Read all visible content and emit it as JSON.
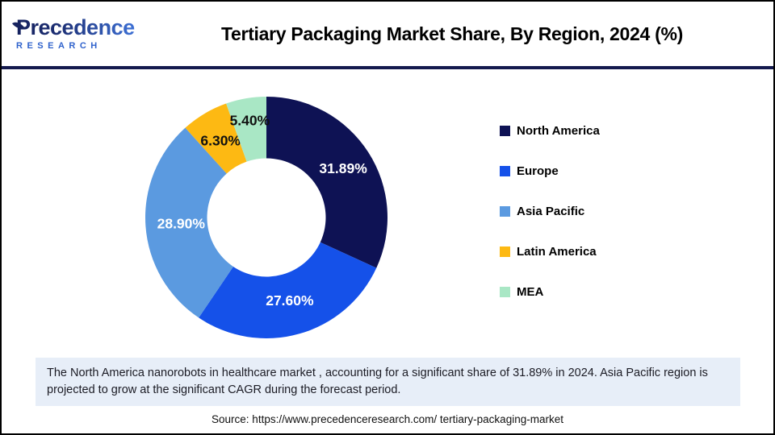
{
  "header": {
    "logo": {
      "name": "Precedence",
      "subtitle": "RESEARCH"
    },
    "title": "Tertiary Packaging Market Share, By Region, 2024 (%)"
  },
  "chart_data": {
    "type": "pie",
    "donut": true,
    "inner_radius_ratio": 0.49,
    "title": "Tertiary Packaging Market Share, By Region, 2024 (%)",
    "unit": "%",
    "legend_position": "right",
    "slices": [
      {
        "name": "North America",
        "value": 31.89,
        "label": "31.89%",
        "color": "#0e1254",
        "label_color": "#ffffff",
        "label_radius": 113
      },
      {
        "name": "Europe",
        "value": 27.6,
        "label": "27.60%",
        "color": "#1551e9",
        "label_color": "#ffffff",
        "label_radius": 107
      },
      {
        "name": "Asia Pacific",
        "value": 28.9,
        "label": "28.90%",
        "color": "#5b9ae0",
        "label_color": "#ffffff",
        "label_radius": 106
      },
      {
        "name": "Latin America",
        "value": 6.3,
        "label": "6.30%",
        "color": "#fdb913",
        "label_color": "#111111",
        "label_radius": 111
      },
      {
        "name": "MEA",
        "value": 5.4,
        "label": "5.40%",
        "color": "#a9e7c5",
        "label_color": "#111111",
        "label_radius": 122
      }
    ]
  },
  "footer": {
    "note": "The North America nanorobots in healthcare market , accounting for a significant share of 31.89% in 2024. Asia Pacific region is projected to grow at the significant CAGR during the forecast period.",
    "source": "Source: https://www.precedenceresearch.com/ tertiary-packaging-market"
  }
}
